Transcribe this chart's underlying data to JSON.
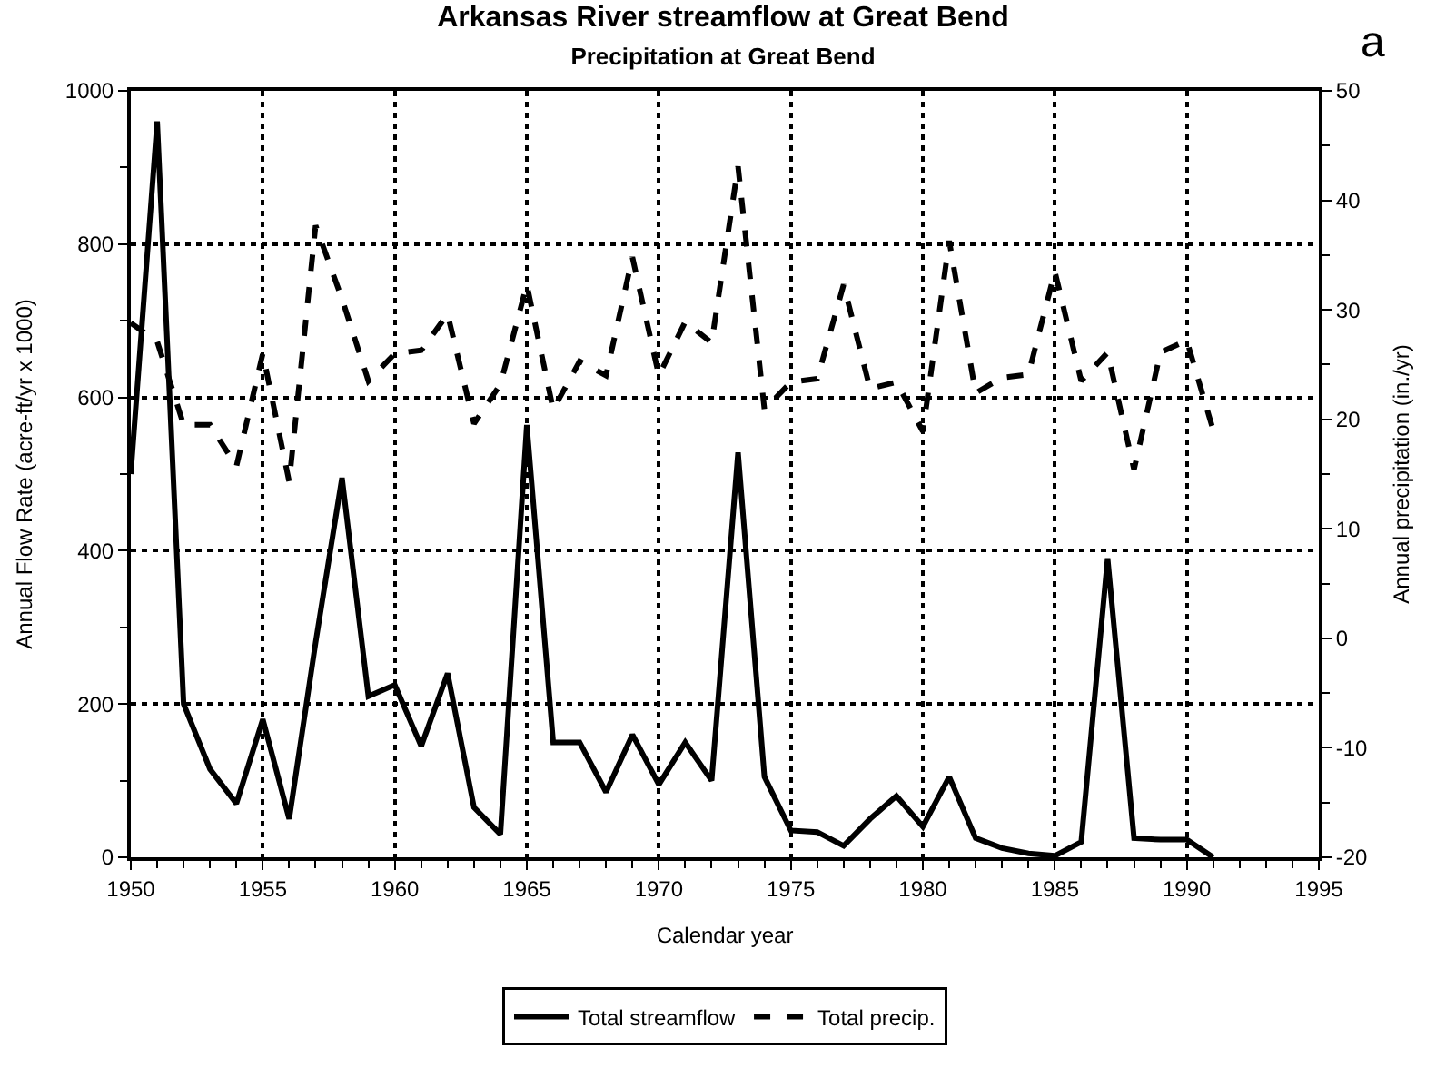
{
  "chart_data": {
    "type": "line",
    "title": "Arkansas River streamflow at Great Bend",
    "subtitle": "Precipitation at Great Bend",
    "xlabel": "Calendar year",
    "ylabel": "Annual Flow Rate (acre-ft/yr x 1000)",
    "y2label": "Annual precipitation (in./yr)",
    "annotations": [
      "a"
    ],
    "x": [
      1950,
      1951,
      1952,
      1953,
      1954,
      1955,
      1956,
      1957,
      1958,
      1959,
      1960,
      1961,
      1962,
      1963,
      1964,
      1965,
      1966,
      1967,
      1968,
      1969,
      1970,
      1971,
      1972,
      1973,
      1974,
      1975,
      1976,
      1977,
      1978,
      1979,
      1980,
      1981,
      1982,
      1983,
      1984,
      1985,
      1986,
      1987,
      1988,
      1989,
      1990,
      1991
    ],
    "series": [
      {
        "name": "Total streamflow",
        "color": "#000000",
        "line_style": "solid",
        "values": [
          500,
          960,
          200,
          115,
          70,
          180,
          50,
          280,
          495,
          210,
          225,
          145,
          240,
          65,
          30,
          564,
          150,
          150,
          85,
          160,
          95,
          150,
          100,
          528,
          105,
          35,
          33,
          15,
          50,
          80,
          40,
          105,
          25,
          12,
          5,
          2,
          20,
          390,
          25,
          23,
          23,
          0
        ]
      },
      {
        "name": "Total precip.",
        "color": "#000000",
        "line_style": "dashed",
        "axis": "y2",
        "values": [
          28.8,
          27.1,
          19.5,
          19.5,
          15.7,
          26,
          14.3,
          37.7,
          31,
          23.5,
          26,
          26.3,
          29.6,
          19.6,
          23.2,
          32.3,
          20.9,
          25.3,
          24,
          34.8,
          24,
          28.9,
          27,
          43.1,
          20.9,
          23.4,
          23.7,
          32.3,
          22.8,
          23.4,
          18.9,
          36.3,
          22.4,
          23.8,
          24.1,
          33.5,
          23.5,
          26.1,
          15.4,
          26.1,
          27.2,
          19
        ]
      }
    ],
    "xlim": [
      1950,
      1995
    ],
    "xticks": [
      1950,
      1955,
      1960,
      1965,
      1970,
      1975,
      1980,
      1985,
      1990,
      1995
    ],
    "ylim": [
      0,
      1000
    ],
    "yticks": [
      0,
      200,
      400,
      600,
      800,
      1000
    ],
    "y2lim": [
      -20,
      50
    ],
    "y2ticks": [
      -20,
      -10,
      0,
      10,
      20,
      30,
      40,
      50
    ],
    "grid": true,
    "legend": "bottom",
    "marker": "none"
  }
}
